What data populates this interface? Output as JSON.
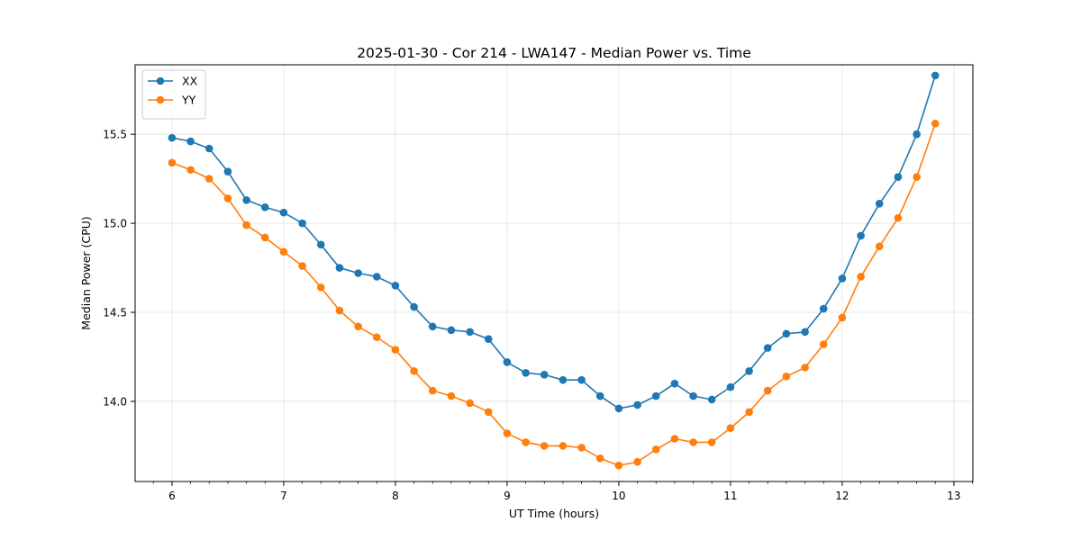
{
  "chart_data": {
    "type": "line",
    "title": "2025-01-30 - Cor 214 - LWA147 - Median Power vs. Time",
    "xlabel": "UT Time (hours)",
    "ylabel": "Median Power (CPU)",
    "xlim": [
      5.67,
      13.17
    ],
    "ylim": [
      13.55,
      15.89
    ],
    "xticks": [
      6,
      7,
      8,
      9,
      10,
      11,
      12,
      13
    ],
    "xtick_labels": [
      "6",
      "7",
      "8",
      "9",
      "10",
      "11",
      "12",
      "13"
    ],
    "yticks": [
      14.0,
      14.5,
      15.0,
      15.5
    ],
    "ytick_labels": [
      "14.0",
      "14.5",
      "15.0",
      "15.5"
    ],
    "grid": true,
    "legend_position": "top-left",
    "x": [
      6.0,
      6.167,
      6.333,
      6.5,
      6.667,
      6.833,
      7.0,
      7.167,
      7.333,
      7.5,
      7.667,
      7.833,
      8.0,
      8.167,
      8.333,
      8.5,
      8.667,
      8.833,
      9.0,
      9.167,
      9.333,
      9.5,
      9.667,
      9.833,
      10.0,
      10.167,
      10.333,
      10.5,
      10.667,
      10.833,
      11.0,
      11.167,
      11.333,
      11.5,
      11.667,
      11.833,
      12.0,
      12.167,
      12.333,
      12.5,
      12.667,
      12.833
    ],
    "series": [
      {
        "name": "XX",
        "color": "#1f77b4",
        "values": [
          15.48,
          15.46,
          15.42,
          15.29,
          15.13,
          15.09,
          15.06,
          15.0,
          14.88,
          14.75,
          14.72,
          14.7,
          14.65,
          14.53,
          14.42,
          14.4,
          14.39,
          14.35,
          14.22,
          14.16,
          14.15,
          14.12,
          14.12,
          14.03,
          13.96,
          13.98,
          14.03,
          14.1,
          14.03,
          14.01,
          14.08,
          14.17,
          14.3,
          14.38,
          14.39,
          14.52,
          14.69,
          14.93,
          15.11,
          15.26,
          15.5,
          15.83
        ]
      },
      {
        "name": "YY",
        "color": "#ff7f0e",
        "values": [
          15.34,
          15.3,
          15.25,
          15.14,
          14.99,
          14.92,
          14.84,
          14.76,
          14.64,
          14.51,
          14.42,
          14.36,
          14.29,
          14.17,
          14.06,
          14.03,
          13.99,
          13.94,
          13.82,
          13.77,
          13.75,
          13.75,
          13.74,
          13.68,
          13.64,
          13.66,
          13.73,
          13.79,
          13.77,
          13.77,
          13.85,
          13.94,
          14.06,
          14.14,
          14.19,
          14.32,
          14.47,
          14.7,
          14.87,
          15.03,
          15.26,
          15.56
        ]
      }
    ]
  }
}
